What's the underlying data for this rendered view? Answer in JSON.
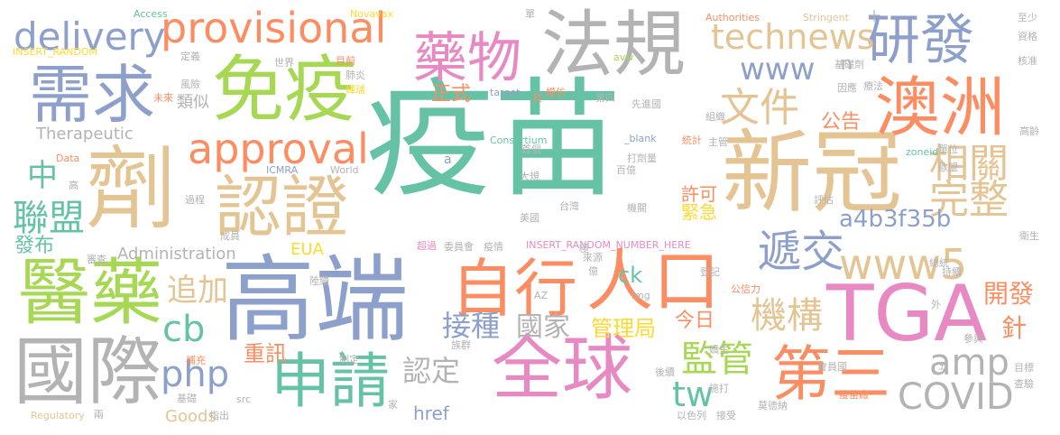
{
  "words": {
    "yimiao": "疫苗",
    "xinguan": "新冠",
    "gaoduan": "高端",
    "tga": "TGA",
    "ji": "劑",
    "guoji": "國際",
    "fagui": "法規",
    "yiyao": "醫藥",
    "quanqiu": "全球",
    "mianyi": "免疫",
    "aozhou": "澳洲",
    "xuqiu": "需求",
    "renzheng": "認證",
    "zixing": "自行",
    "renkou": "人口",
    "yaowu": "藥物",
    "disan": "第三",
    "shenqing": "申請",
    "yanfa": "研發",
    "approval": "approval",
    "provisional": "provisional",
    "delivery": "delivery",
    "technews": "technews",
    "www5": "www5",
    "www": "www",
    "zhexiao": "遞交",
    "wenjian": "文件",
    "xiangguan": "相關",
    "wanzheng": "完整",
    "lianmeng": "聯盟",
    "jigou": "機構",
    "jianguan": "監管",
    "covid": "COVID",
    "amp": "amp",
    "php": "php",
    "cb": "cb",
    "tw": "tw",
    "zhong": "中",
    "zhuijia": "追加",
    "jiezhong": "接種",
    "guojia": "國家",
    "rending": "認定",
    "kaifa": "開發",
    "zhen": "針",
    "a4b": "a4b3f35b",
    "zhengshi": "正式",
    "gonggao": "公告",
    "xuke": "許可",
    "jinji": "緊急",
    "guanliju": "管理局",
    "jinri": "今日",
    "zhongxun": "重訊",
    "ck": "ck",
    "fabu": "發布",
    "href": "href",
    "goods": "Goods",
    "leisi": "類似",
    "therapeutic": "Therapeutic",
    "administration": "Administration",
    "eua": "EUA",
    "n": "n",
    "access": "Access",
    "novavax": "Novavax",
    "authorities": "Authorities",
    "stringent": "Stringent",
    "insert_random": "INSERT_RANDOM",
    "insert_random_full": "INSERT_RANDOM_NUMBER_HERE",
    "avw": "avw",
    "target": "target",
    "consortium": "Consortium",
    "blank": "_blank",
    "data": "Data",
    "icmra": "ICMRA",
    "world": "World",
    "regulatory": "Regulatory",
    "a": "a",
    "az": "AZ",
    "img": "img",
    "src": "src",
    "zoneid": "zoneid",
    "dingyi": "定義",
    "shijie": "世界",
    "muqian": "目前",
    "fengxian": "風險",
    "feiyan": "肺炎",
    "huirui": "輝瑞",
    "weilai": "未來",
    "jujie": "具",
    "mofang": "模仿",
    "disi": "第四",
    "xianjinguo": "先進國",
    "yinying": "因應",
    "liaofa": "療法",
    "jichuji": "基礎劑",
    "zishi": "資格",
    "hezhun": "核准",
    "zhishao": "至少",
    "dan": "單",
    "shi": "十",
    "zuzhi": "組織",
    "tongji": "統計",
    "zhuguan": "主管",
    "gaoling": "高齡",
    "danwei": "單位",
    "oumeng": "歐盟",
    "shoujie": "首個",
    "dagui": "大規",
    "daji": "打劑量",
    "baiyi": "百億",
    "taiwan": "台灣",
    "jiguan": "機關",
    "meiguo": "美國",
    "pinggu": "評估",
    "guocheng": "過程",
    "gao": "高",
    "chengyuan": "成員",
    "shencha": "審查",
    "chaoguo": "超過",
    "weiyuanhui": "委員會",
    "yiqing": "疫情",
    "weisheng": "衛生",
    "zongji": "總統",
    "chixu": "持續",
    "laiyuan": "來源",
    "ji2": "極",
    "yi": "億",
    "dengji": "登記",
    "gongxinli": "公信力",
    "wai": "外",
    "canyu": "參與",
    "luxu": "陸續",
    "buchong": "補充",
    "jichu": "基礎",
    "zhiding": "制定",
    "zuqun": "族群",
    "jia": "家",
    "houxu": "後續",
    "shida": "施打",
    "hesheng": "嬌生",
    "wu": "五",
    "huiyuanguo": "會員國",
    "mubiao": "目標",
    "chayan": "查驗",
    "liang": "兩",
    "zhichu": "指出",
    "yiselie": "以色列",
    "jieshou": "接受",
    "modena": "莫德納",
    "yimiaochang": "疫苗廠"
  },
  "colors": {
    "green": "#66c2a5",
    "orange": "#fc8d62",
    "blue": "#8da0cb",
    "pink": "#e78ac3",
    "lime": "#a6d854",
    "yellow": "#ffd92f",
    "tan": "#e5c494",
    "gray": "#b3b3b3"
  }
}
